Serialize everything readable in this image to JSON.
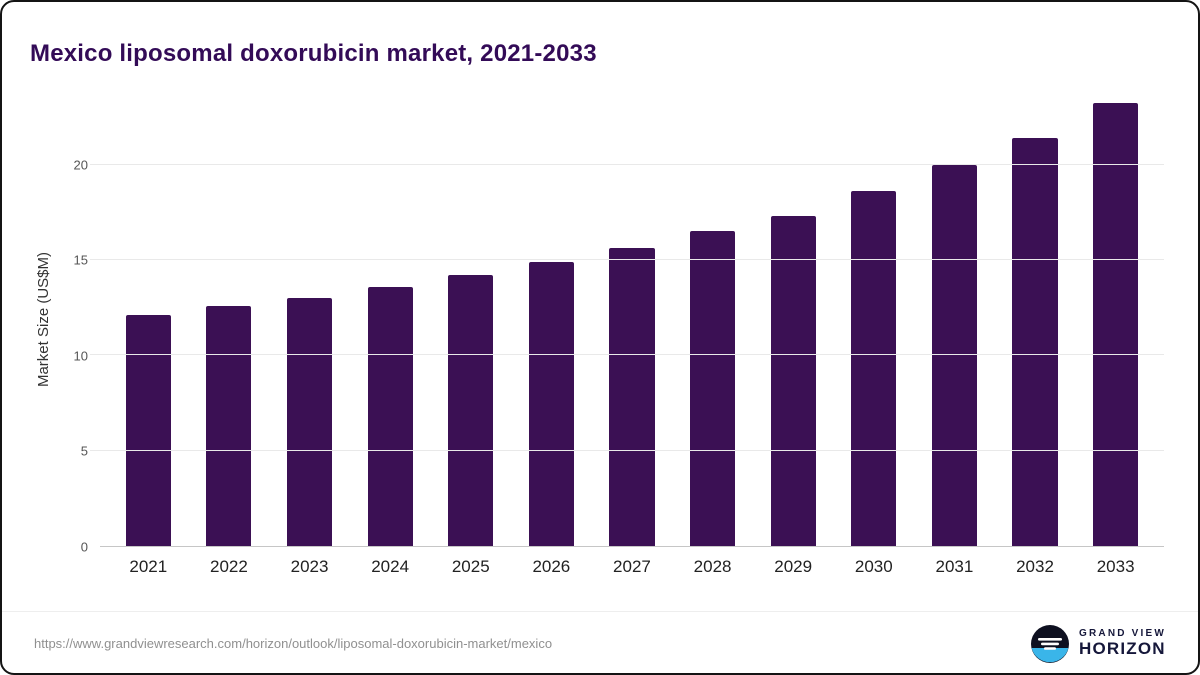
{
  "title": "Mexico liposomal doxorubicin market, 2021-2033",
  "source_url": "https://www.grandviewresearch.com/horizon/outlook/liposomal-doxorubicin-market/mexico",
  "logo": {
    "line1": "GRAND VIEW",
    "line2": "HORIZON"
  },
  "colors": {
    "bar": "#3b1054",
    "title": "#330b57",
    "logo_blue": "#3ab5e9",
    "logo_dark": "#0e1020"
  },
  "chart_data": {
    "type": "bar",
    "title": "Mexico liposomal doxorubicin market, 2021-2033",
    "xlabel": "",
    "ylabel": "Market Size (US$M)",
    "categories": [
      "2021",
      "2022",
      "2023",
      "2024",
      "2025",
      "2026",
      "2027",
      "2028",
      "2029",
      "2030",
      "2031",
      "2032",
      "2033"
    ],
    "values": [
      12.1,
      12.6,
      13.0,
      13.6,
      14.2,
      14.9,
      15.6,
      16.5,
      17.3,
      18.6,
      20.0,
      21.4,
      23.2
    ],
    "yticks": [
      0,
      5,
      10,
      15,
      20
    ],
    "ylim": [
      0,
      23.8
    ],
    "bar_color": "#3b1054",
    "grid": true,
    "legend": false
  }
}
